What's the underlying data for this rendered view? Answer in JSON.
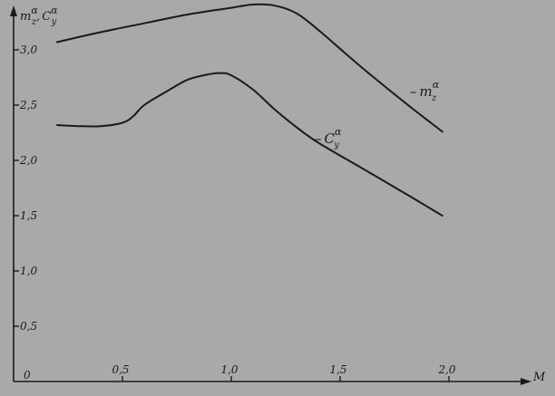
{
  "colors": {
    "background": "#a9a9a9",
    "ink": "#1a1a1a"
  },
  "chart_data": {
    "type": "line",
    "title": "",
    "xlabel": "M",
    "ylabel": {
      "base1": "m",
      "sub1": "z",
      "sup1": "α",
      "sep": ",",
      "base2": "C",
      "sub2": "y",
      "sup2": "α"
    },
    "origin_label": "0",
    "xlim": [
      0,
      2.4
    ],
    "ylim": [
      0,
      3.4
    ],
    "xticks": [
      {
        "value": 0.5,
        "label": "0,5"
      },
      {
        "value": 1.0,
        "label": "1,0"
      },
      {
        "value": 1.5,
        "label": "1,5"
      },
      {
        "value": 2.0,
        "label": "2,0"
      }
    ],
    "yticks": [
      {
        "value": 0.5,
        "label": "0,5"
      },
      {
        "value": 1.0,
        "label": "1,0"
      },
      {
        "value": 1.5,
        "label": "1,5"
      },
      {
        "value": 2.0,
        "label": "2,0"
      },
      {
        "value": 2.5,
        "label": "2,5"
      },
      {
        "value": 3.0,
        "label": "3,0"
      }
    ],
    "grid": false,
    "legend": "none",
    "series": [
      {
        "label": {
          "prefix": "–",
          "base": "m",
          "sub": "z",
          "sup": "α"
        },
        "x": [
          0.2,
          0.4,
          0.6,
          0.8,
          1.0,
          1.1,
          1.2,
          1.3,
          1.4,
          1.6,
          1.8,
          1.97
        ],
        "y": [
          3.07,
          3.16,
          3.24,
          3.32,
          3.38,
          3.41,
          3.4,
          3.33,
          3.18,
          2.84,
          2.52,
          2.26
        ]
      },
      {
        "label": {
          "prefix": "–",
          "base": "C",
          "sub": "y",
          "sup": "α"
        },
        "x": [
          0.2,
          0.3,
          0.4,
          0.5,
          0.55,
          0.6,
          0.7,
          0.8,
          0.9,
          0.95,
          1.0,
          1.1,
          1.2,
          1.3,
          1.4,
          1.6,
          1.8,
          1.97
        ],
        "y": [
          2.32,
          2.31,
          2.31,
          2.34,
          2.4,
          2.5,
          2.62,
          2.73,
          2.78,
          2.79,
          2.77,
          2.64,
          2.46,
          2.3,
          2.16,
          1.93,
          1.7,
          1.5
        ]
      }
    ]
  }
}
